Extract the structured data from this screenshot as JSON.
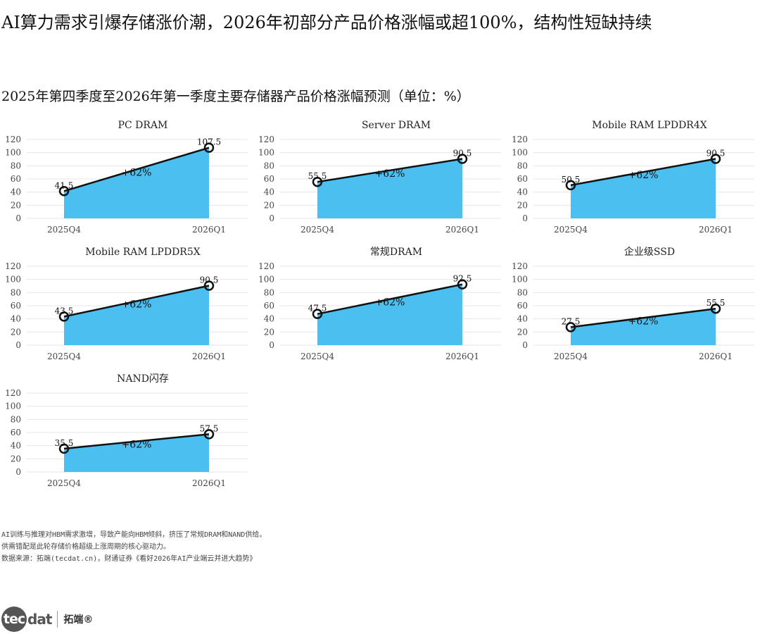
{
  "header": {
    "title": "AI算力需求引爆存储涨价潮，2026年初部分产品价格涨幅或超100%，结构性短缺持续",
    "subtitle": "2025年第四季度至2026年第一季度主要存储器产品价格涨幅预测（单位：%）"
  },
  "colors": {
    "area": "#4bbff0",
    "line": "#111111",
    "grid": "#e6e6e6",
    "axis_text": "#444444"
  },
  "chart_data": [
    {
      "type": "area",
      "title": "PC DRAM",
      "categories": [
        "2025Q4",
        "2026Q1"
      ],
      "values": [
        41.5,
        107.5
      ],
      "annotation": "+62%",
      "ylim": [
        0,
        120
      ],
      "yticks": [
        0,
        20,
        40,
        60,
        80,
        100,
        120
      ],
      "grid": true
    },
    {
      "type": "area",
      "title": "Server DRAM",
      "categories": [
        "2025Q4",
        "2026Q1"
      ],
      "values": [
        55.5,
        90.5
      ],
      "annotation": "+62%",
      "ylim": [
        0,
        120
      ],
      "yticks": [
        0,
        20,
        40,
        60,
        80,
        100,
        120
      ],
      "grid": true
    },
    {
      "type": "area",
      "title": "Mobile RAM LPDDR4X",
      "categories": [
        "2025Q4",
        "2026Q1"
      ],
      "values": [
        50.5,
        90.5
      ],
      "annotation": "+62%",
      "ylim": [
        0,
        120
      ],
      "yticks": [
        0,
        20,
        40,
        60,
        80,
        100,
        120
      ],
      "grid": true
    },
    {
      "type": "area",
      "title": "Mobile RAM LPDDR5X",
      "categories": [
        "2025Q4",
        "2026Q1"
      ],
      "values": [
        43.5,
        90.5
      ],
      "annotation": "+62%",
      "ylim": [
        0,
        120
      ],
      "yticks": [
        0,
        20,
        40,
        60,
        80,
        100,
        120
      ],
      "grid": true
    },
    {
      "type": "area",
      "title": "常规DRAM",
      "categories": [
        "2025Q4",
        "2026Q1"
      ],
      "values": [
        47.5,
        92.5
      ],
      "annotation": "+62%",
      "ylim": [
        0,
        120
      ],
      "yticks": [
        0,
        20,
        40,
        60,
        80,
        100,
        120
      ],
      "grid": true
    },
    {
      "type": "area",
      "title": "企业级SSD",
      "categories": [
        "2025Q4",
        "2026Q1"
      ],
      "values": [
        27.5,
        55.5
      ],
      "annotation": "+62%",
      "ylim": [
        0,
        120
      ],
      "yticks": [
        0,
        20,
        40,
        60,
        80,
        100,
        120
      ],
      "grid": true
    },
    {
      "type": "area",
      "title": "NAND闪存",
      "categories": [
        "2025Q4",
        "2026Q1"
      ],
      "values": [
        35.5,
        57.5
      ],
      "annotation": "+62%",
      "ylim": [
        0,
        120
      ],
      "yticks": [
        0,
        20,
        40,
        60,
        80,
        100,
        120
      ],
      "grid": true
    }
  ],
  "notes": [
    "AI训练与推理对HBM需求激增，导致产能向HBM倾斜，挤压了常规DRAM和NAND供给。",
    "供需错配是此轮存储价格超级上涨周期的核心驱动力。",
    "数据来源：拓端(tecdat.cn)，财通证券《看好2026年AI产业端云并进大趋势》"
  ],
  "logo": {
    "mark_circle": "tec",
    "mark_rest": "dat",
    "cn": "拓端®"
  }
}
